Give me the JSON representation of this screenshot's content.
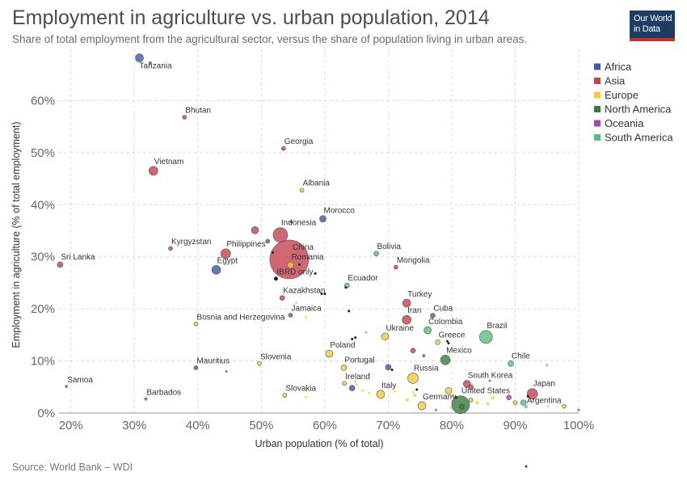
{
  "header": {
    "title": "Employment in agriculture vs. urban population, 2014",
    "subtitle": "Share of total employment from the agricultural sector, versus the share of population living in urban areas."
  },
  "logo": {
    "line1": "Our World",
    "line2": "in Data"
  },
  "footer": {
    "source": "Source: World Bank – WDI"
  },
  "chart_data": {
    "type": "scatter",
    "title": "Employment in agriculture vs. urban population, 2014",
    "subtitle": "Share of total employment from the agricultural sector, versus the share of population living in urban areas.",
    "xlabel": "Urban population (% of total)",
    "ylabel": "Employment in agriculture (% of total employment)",
    "xlim": [
      18,
      100
    ],
    "ylim": [
      0,
      70
    ],
    "xticks": [
      "20%",
      "30%",
      "40%",
      "50%",
      "60%",
      "70%",
      "80%",
      "90%",
      "100%"
    ],
    "yticks": [
      "0%",
      "10%",
      "20%",
      "30%",
      "40%",
      "50%",
      "60%"
    ],
    "grid": true,
    "legend_position": "right",
    "series": [
      {
        "name": "Africa",
        "color": "#3a5ba8"
      },
      {
        "name": "Asia",
        "color": "#c6414f"
      },
      {
        "name": "Europe",
        "color": "#f3c93a"
      },
      {
        "name": "North America",
        "color": "#3b7a3f"
      },
      {
        "name": "Oceania",
        "color": "#a544b5"
      },
      {
        "name": "South America",
        "color": "#5dbb80"
      }
    ],
    "points": [
      {
        "label": "Tanzania",
        "x": 30.8,
        "y": 68.2,
        "region": "Africa",
        "r": 5
      },
      {
        "label": "",
        "x": 32.5,
        "y": 67.2,
        "region": "Africa",
        "r": 2
      },
      {
        "label": "Bhutan",
        "x": 37.9,
        "y": 56.8,
        "region": "Asia",
        "r": 2.5
      },
      {
        "label": "Georgia",
        "x": 53.5,
        "y": 50.8,
        "region": "Asia",
        "r": 2.5
      },
      {
        "label": "Vietnam",
        "x": 33.0,
        "y": 46.5,
        "region": "Asia",
        "r": 5.5
      },
      {
        "label": "Albania",
        "x": 56.4,
        "y": 42.8,
        "region": "Europe",
        "r": 2.5
      },
      {
        "label": "Morocco",
        "x": 59.7,
        "y": 37.3,
        "region": "Africa",
        "r": 4
      },
      {
        "label": "",
        "x": 54.7,
        "y": 36.7,
        "region": "Asia",
        "r": 2
      },
      {
        "label": "",
        "x": 49.0,
        "y": 35.1,
        "region": "Asia",
        "r": 4.5
      },
      {
        "label": "Indonesia",
        "x": 53.0,
        "y": 34.2,
        "region": "Asia",
        "r": 9
      },
      {
        "label": "",
        "x": 51.0,
        "y": 33.0,
        "region": "North America",
        "r": 2.5
      },
      {
        "label": "Kyrgyzstan",
        "x": 35.7,
        "y": 31.6,
        "region": "Asia",
        "r": 2.5
      },
      {
        "label": "Philippines",
        "x": 44.4,
        "y": 30.6,
        "region": "Asia",
        "r": 6
      },
      {
        "label": "",
        "x": 51.8,
        "y": 30.8,
        "region": "",
        "r": 1.5
      },
      {
        "label": "China",
        "x": 54.4,
        "y": 29.5,
        "region": "Asia",
        "r": 24
      },
      {
        "label": "Romania",
        "x": 54.6,
        "y": 28.4,
        "region": "Europe",
        "r": 4
      },
      {
        "label": "Bolivia",
        "x": 68.1,
        "y": 30.6,
        "region": "South America",
        "r": 3
      },
      {
        "label": "Sri Lanka",
        "x": 18.3,
        "y": 28.5,
        "region": "Asia",
        "r": 3.5
      },
      {
        "label": "Mongolia",
        "x": 71.2,
        "y": 28.0,
        "region": "Asia",
        "r": 2.5
      },
      {
        "label": "Egypt",
        "x": 42.9,
        "y": 27.5,
        "region": "Africa",
        "r": 5.5
      },
      {
        "label": "",
        "x": 56.0,
        "y": 28.5,
        "region": "",
        "r": 1.5
      },
      {
        "label": "",
        "x": 58.5,
        "y": 26.8,
        "region": "",
        "r": 1.5
      },
      {
        "label": "IBRD only",
        "x": 52.3,
        "y": 25.8,
        "region": "",
        "r": 2.5
      },
      {
        "label": "Ecuador",
        "x": 63.5,
        "y": 24.5,
        "region": "South America",
        "r": 3
      },
      {
        "label": "",
        "x": 63.3,
        "y": 24.1,
        "region": "",
        "r": 1.5
      },
      {
        "label": "Kazakhstan",
        "x": 53.3,
        "y": 22.1,
        "region": "Asia",
        "r": 3
      },
      {
        "label": "",
        "x": 59.5,
        "y": 22.9,
        "region": "",
        "r": 1.5
      },
      {
        "label": "",
        "x": 60.0,
        "y": 22.9,
        "region": "",
        "r": 1.5
      },
      {
        "label": "",
        "x": 55.5,
        "y": 21.1,
        "region": "Europe",
        "r": 1.5
      },
      {
        "label": "Turkey",
        "x": 72.9,
        "y": 21.1,
        "region": "Asia",
        "r": 5
      },
      {
        "label": "",
        "x": 63.8,
        "y": 19.6,
        "region": "",
        "r": 1.5
      },
      {
        "label": "Jamaica",
        "x": 54.6,
        "y": 18.8,
        "region": "North America",
        "r": 2.5
      },
      {
        "label": "Cuba",
        "x": 77.0,
        "y": 18.7,
        "region": "North America",
        "r": 3
      },
      {
        "label": "",
        "x": 57.0,
        "y": 18.4,
        "region": "Europe",
        "r": 1.5
      },
      {
        "label": "Iran",
        "x": 72.9,
        "y": 17.9,
        "region": "Asia",
        "r": 5.5
      },
      {
        "label": "Bosnia and Herzegovina",
        "x": 39.7,
        "y": 17.1,
        "region": "Europe",
        "r": 2.5
      },
      {
        "label": "Colombia",
        "x": 76.2,
        "y": 15.9,
        "region": "South America",
        "r": 4.5
      },
      {
        "label": "Ukraine",
        "x": 69.5,
        "y": 14.7,
        "region": "Europe",
        "r": 4.5
      },
      {
        "label": "Brazil",
        "x": 85.4,
        "y": 14.6,
        "region": "South America",
        "r": 8
      },
      {
        "label": "",
        "x": 66.5,
        "y": 15.5,
        "region": "South America",
        "r": 1.5
      },
      {
        "label": "",
        "x": 64.8,
        "y": 14.5,
        "region": "",
        "r": 1.5
      },
      {
        "label": "",
        "x": 64.3,
        "y": 14.2,
        "region": "",
        "r": 1.5
      },
      {
        "label": "Greece",
        "x": 77.8,
        "y": 13.6,
        "region": "Europe",
        "r": 3
      },
      {
        "label": "",
        "x": 79.3,
        "y": 13.8,
        "region": "",
        "r": 1.5
      },
      {
        "label": "",
        "x": 79.5,
        "y": 13.4,
        "region": "",
        "r": 1.5
      },
      {
        "label": "",
        "x": 73.9,
        "y": 12.0,
        "region": "Asia",
        "r": 3
      },
      {
        "label": "Poland",
        "x": 60.7,
        "y": 11.4,
        "region": "Europe",
        "r": 4.5
      },
      {
        "label": "",
        "x": 75.6,
        "y": 11.0,
        "region": "North America",
        "r": 2
      },
      {
        "label": "Mexico",
        "x": 79.0,
        "y": 10.2,
        "region": "North America",
        "r": 6
      },
      {
        "label": "Mauritius",
        "x": 39.7,
        "y": 8.7,
        "region": "Africa",
        "r": 2.5
      },
      {
        "label": "Slovenia",
        "x": 49.7,
        "y": 9.5,
        "region": "Europe",
        "r": 2.5
      },
      {
        "label": "Portugal",
        "x": 63.0,
        "y": 8.7,
        "region": "Europe",
        "r": 3.5
      },
      {
        "label": "Chile",
        "x": 89.3,
        "y": 9.5,
        "region": "South America",
        "r": 3.5
      },
      {
        "label": "",
        "x": 95.0,
        "y": 9.2,
        "region": "South America",
        "r": 1.5
      },
      {
        "label": "",
        "x": 70.0,
        "y": 8.8,
        "region": "Africa",
        "r": 3.5
      },
      {
        "label": "",
        "x": 70.6,
        "y": 8.3,
        "region": "",
        "r": 1.5
      },
      {
        "label": "",
        "x": 44.5,
        "y": 8.0,
        "region": "Asia",
        "r": 1.5
      },
      {
        "label": "",
        "x": 67.0,
        "y": 7.5,
        "region": "Europe",
        "r": 1.5
      },
      {
        "label": "Russia",
        "x": 73.9,
        "y": 6.7,
        "region": "Europe",
        "r": 6.5
      },
      {
        "label": "South Korea",
        "x": 82.4,
        "y": 5.6,
        "region": "Asia",
        "r": 4.5
      },
      {
        "label": "",
        "x": 83.0,
        "y": 5.0,
        "region": "Asia",
        "r": 3
      },
      {
        "label": "",
        "x": 86.0,
        "y": 6.2,
        "region": "Oceania",
        "r": 1.5
      },
      {
        "label": "Ireland",
        "x": 63.1,
        "y": 5.7,
        "region": "Europe",
        "r": 2.5
      },
      {
        "label": "",
        "x": 64.8,
        "y": 6.0,
        "region": "Europe",
        "r": 1.5
      },
      {
        "label": "",
        "x": 65.0,
        "y": 5.5,
        "region": "Europe",
        "r": 1.5
      },
      {
        "label": "Samoa",
        "x": 19.3,
        "y": 5.1,
        "region": "Oceania",
        "r": 2
      },
      {
        "label": "",
        "x": 64.3,
        "y": 4.8,
        "region": "Africa",
        "r": 3.5
      },
      {
        "label": "",
        "x": 66.0,
        "y": 4.3,
        "region": "Europe",
        "r": 1.5
      },
      {
        "label": "",
        "x": 67.0,
        "y": 3.9,
        "region": "Europe",
        "r": 1.5
      },
      {
        "label": "Italy",
        "x": 68.8,
        "y": 3.6,
        "region": "Europe",
        "r": 5
      },
      {
        "label": "",
        "x": 71.0,
        "y": 4.2,
        "region": "Europe",
        "r": 1.5
      },
      {
        "label": "",
        "x": 74.0,
        "y": 4.0,
        "region": "Europe",
        "r": 1.5
      },
      {
        "label": "",
        "x": 74.5,
        "y": 4.5,
        "region": "",
        "r": 1.5
      },
      {
        "label": "",
        "x": 79.5,
        "y": 4.3,
        "region": "Europe",
        "r": 4
      },
      {
        "label": "",
        "x": 80.2,
        "y": 3.4,
        "region": "Europe",
        "r": 2
      },
      {
        "label": "",
        "x": 74.2,
        "y": 3.4,
        "region": "Europe",
        "r": 2
      },
      {
        "label": "United States",
        "x": 81.4,
        "y": 1.6,
        "region": "North America",
        "r": 11
      },
      {
        "label": "",
        "x": 81.6,
        "y": 1.2,
        "region": "North America",
        "r": 3.5
      },
      {
        "label": "",
        "x": 80.7,
        "y": 3.0,
        "region": "",
        "r": 1.5
      },
      {
        "label": "",
        "x": 83.0,
        "y": 2.5,
        "region": "Europe",
        "r": 2.5
      },
      {
        "label": "",
        "x": 84.0,
        "y": 2.0,
        "region": "Europe",
        "r": 2
      },
      {
        "label": "",
        "x": 85.7,
        "y": 1.8,
        "region": "Europe",
        "r": 2
      },
      {
        "label": "",
        "x": 86.5,
        "y": 2.9,
        "region": "Europe",
        "r": 2
      },
      {
        "label": "",
        "x": 89.0,
        "y": 3.0,
        "region": "Oceania",
        "r": 3
      },
      {
        "label": "",
        "x": 90.0,
        "y": 2.0,
        "region": "Europe",
        "r": 2.5
      },
      {
        "label": "",
        "x": 91.3,
        "y": 2.0,
        "region": "South America",
        "r": 3.5
      },
      {
        "label": "Argentina",
        "x": 91.7,
        "y": 1.2,
        "region": "South America",
        "r": 2
      },
      {
        "label": "Japan",
        "x": 92.7,
        "y": 3.7,
        "region": "Asia",
        "r": 6.5
      },
      {
        "label": "",
        "x": 92.0,
        "y": 3.2,
        "region": "",
        "r": 1.5
      },
      {
        "label": "",
        "x": 95.2,
        "y": 1.3,
        "region": "Europe",
        "r": 1.5
      },
      {
        "label": "",
        "x": 97.7,
        "y": 1.3,
        "region": "Europe",
        "r": 2.5
      },
      {
        "label": "",
        "x": 100.0,
        "y": 0.6,
        "region": "Africa",
        "r": 1.5
      },
      {
        "label": "Germany",
        "x": 75.3,
        "y": 1.4,
        "region": "Europe",
        "r": 5
      },
      {
        "label": "",
        "x": 77.5,
        "y": 0.6,
        "region": "Asia",
        "r": 1.5
      },
      {
        "label": "",
        "x": 73.0,
        "y": 2.5,
        "region": "Europe",
        "r": 2
      },
      {
        "label": "",
        "x": 79.9,
        "y": 1.0,
        "region": "Europe",
        "r": 1.5
      },
      {
        "label": "Barbados",
        "x": 31.8,
        "y": 2.7,
        "region": "North America",
        "r": 2
      },
      {
        "label": "Slovakia",
        "x": 53.7,
        "y": 3.4,
        "region": "Europe",
        "r": 2.5
      },
      {
        "label": "",
        "x": 57.0,
        "y": 3.1,
        "region": "Europe",
        "r": 1.5
      }
    ]
  }
}
